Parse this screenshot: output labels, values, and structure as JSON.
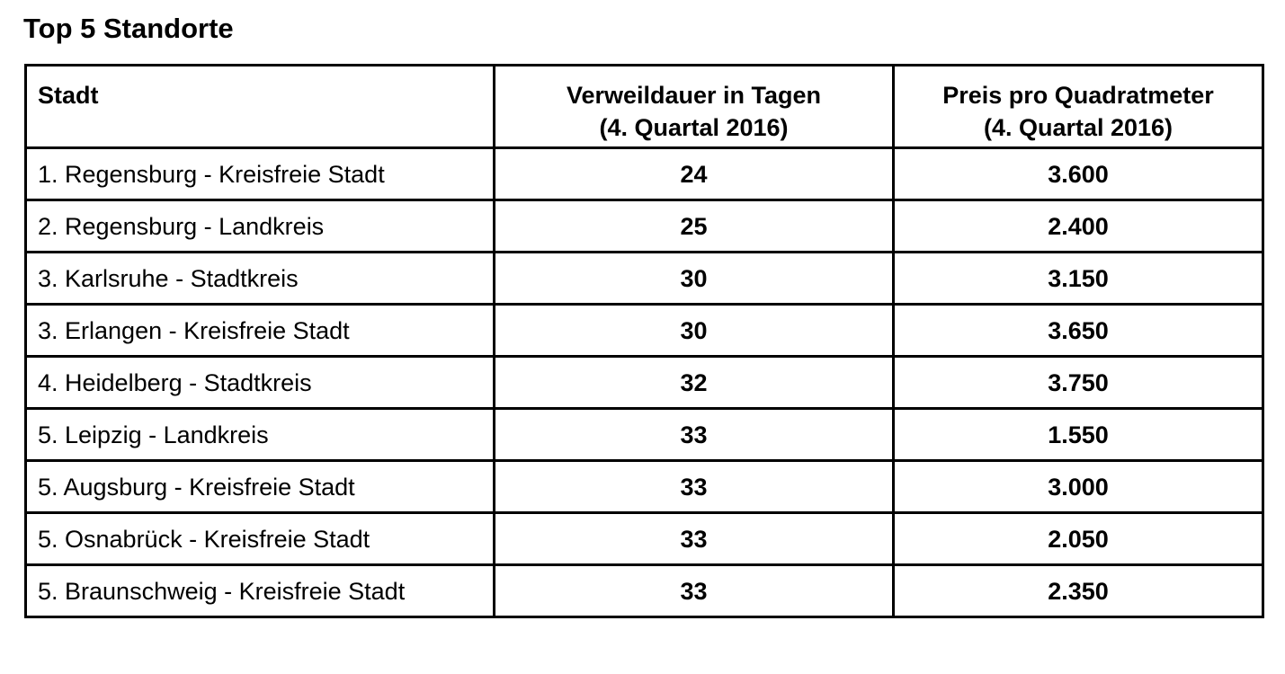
{
  "title": "Top 5 Standorte",
  "table": {
    "headers": {
      "stadt": "Stadt",
      "verweildauer_line1": "Verweildauer in Tagen",
      "verweildauer_line2": "(4. Quartal 2016)",
      "preis_line1": "Preis pro Quadratmeter",
      "preis_line2": "(4. Quartal 2016)"
    },
    "rows": [
      {
        "stadt": "1. Regensburg - Kreisfreie Stadt",
        "verweildauer": "24",
        "preis": "3.600"
      },
      {
        "stadt": "2. Regensburg - Landkreis",
        "verweildauer": "25",
        "preis": "2.400"
      },
      {
        "stadt": "3. Karlsruhe - Stadtkreis",
        "verweildauer": "30",
        "preis": "3.150"
      },
      {
        "stadt": "3. Erlangen - Kreisfreie Stadt",
        "verweildauer": "30",
        "preis": "3.650"
      },
      {
        "stadt": "4. Heidelberg - Stadtkreis",
        "verweildauer": "32",
        "preis": "3.750"
      },
      {
        "stadt": "5. Leipzig - Landkreis",
        "verweildauer": "33",
        "preis": "1.550"
      },
      {
        "stadt": "5. Augsburg - Kreisfreie Stadt",
        "verweildauer": "33",
        "preis": "3.000"
      },
      {
        "stadt": "5. Osnabrück - Kreisfreie Stadt",
        "verweildauer": "33",
        "preis": "2.050"
      },
      {
        "stadt": "5. Braunschweig - Kreisfreie Stadt",
        "verweildauer": "33",
        "preis": "2.350"
      }
    ]
  }
}
